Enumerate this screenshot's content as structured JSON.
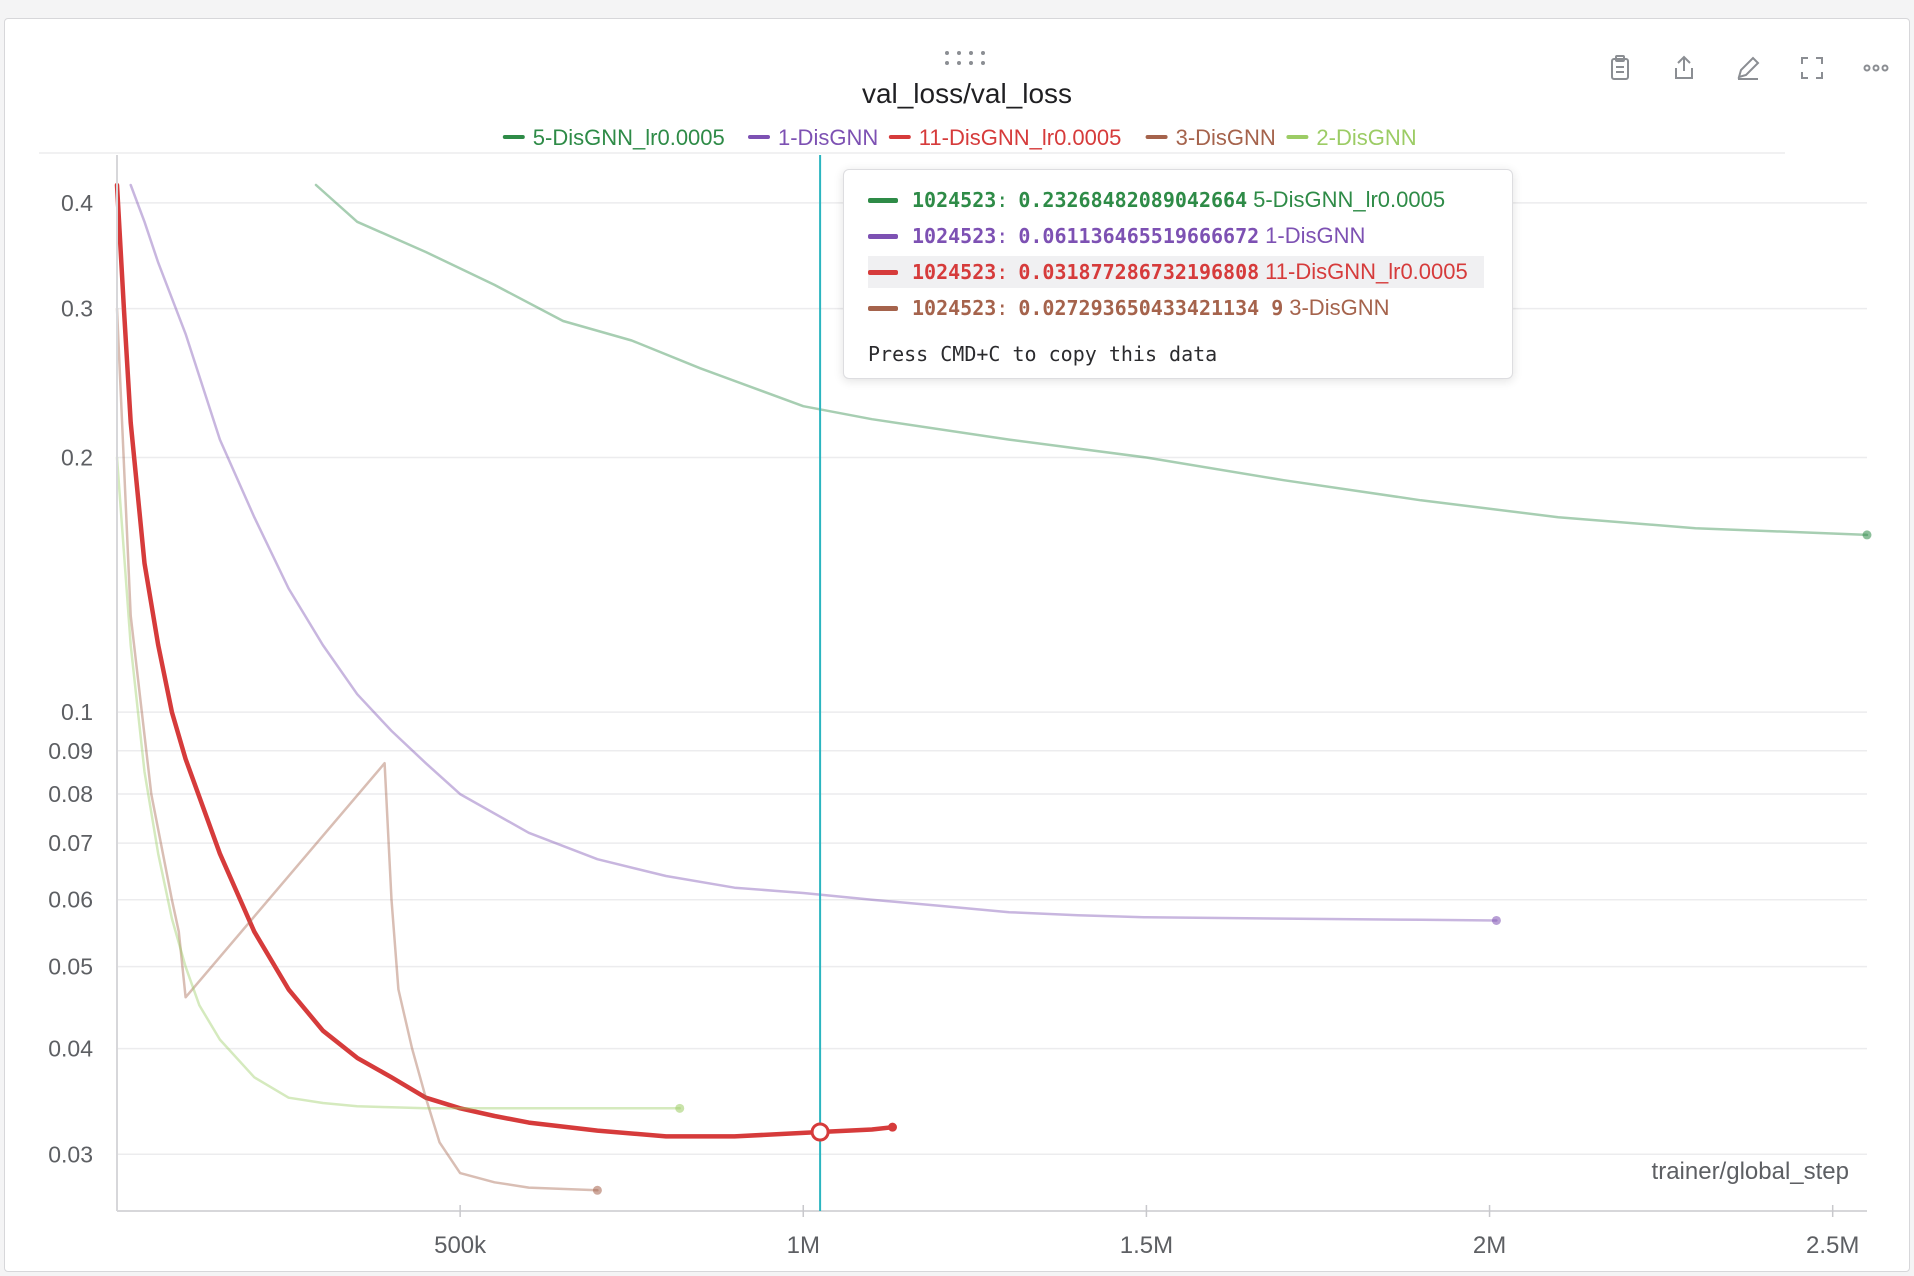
{
  "toolbar": {
    "icons": [
      "clipboard-icon",
      "share-icon",
      "edit-icon",
      "fullscreen-icon",
      "more-icon"
    ]
  },
  "chart_data": {
    "type": "line",
    "title": "val_loss/val_loss",
    "xlabel": "trainer/global_step",
    "ylabel": "",
    "y_scale": "log",
    "xlim": [
      0,
      2550000
    ],
    "ylim": [
      0.027,
      0.42
    ],
    "grid": true,
    "legend_position": "top",
    "x_ticks": [
      {
        "value": 500000,
        "label": "500k"
      },
      {
        "value": 1000000,
        "label": "1M"
      },
      {
        "value": 1500000,
        "label": "1.5M"
      },
      {
        "value": 2000000,
        "label": "2M"
      },
      {
        "value": 2500000,
        "label": "2.5M"
      }
    ],
    "y_ticks": [
      {
        "value": 0.03,
        "label": "0.03"
      },
      {
        "value": 0.04,
        "label": "0.04"
      },
      {
        "value": 0.05,
        "label": "0.05"
      },
      {
        "value": 0.06,
        "label": "0.06"
      },
      {
        "value": 0.07,
        "label": "0.07"
      },
      {
        "value": 0.08,
        "label": "0.08"
      },
      {
        "value": 0.09,
        "label": "0.09"
      },
      {
        "value": 0.1,
        "label": "0.1"
      },
      {
        "value": 0.2,
        "label": "0.2"
      },
      {
        "value": 0.3,
        "label": "0.3"
      },
      {
        "value": 0.4,
        "label": "0.4"
      }
    ],
    "series": [
      {
        "name": "5-DisGNN_lr0.0005",
        "color": "#2e8b47",
        "faded": true,
        "x": [
          290000,
          350000,
          450000,
          550000,
          650000,
          750000,
          850000,
          1000000,
          1100000,
          1300000,
          1500000,
          1700000,
          1900000,
          2100000,
          2300000,
          2550000
        ],
        "y": [
          0.42,
          0.38,
          0.35,
          0.32,
          0.29,
          0.275,
          0.255,
          0.23,
          0.222,
          0.21,
          0.2,
          0.188,
          0.178,
          0.17,
          0.165,
          0.162
        ]
      },
      {
        "name": "1-DisGNN",
        "color": "#7d51b3",
        "faded": true,
        "x": [
          20000,
          40000,
          60000,
          100000,
          150000,
          200000,
          250000,
          300000,
          350000,
          400000,
          450000,
          500000,
          600000,
          700000,
          800000,
          900000,
          1000000,
          1100000,
          1200000,
          1300000,
          1400000,
          1500000,
          1700000,
          1900000,
          2010000
        ],
        "y": [
          0.42,
          0.38,
          0.34,
          0.28,
          0.21,
          0.17,
          0.14,
          0.12,
          0.105,
          0.095,
          0.087,
          0.08,
          0.072,
          0.067,
          0.064,
          0.062,
          0.0611,
          0.06,
          0.059,
          0.058,
          0.0575,
          0.0572,
          0.057,
          0.0568,
          0.0567
        ]
      },
      {
        "name": "11-DisGNN_lr0.0005",
        "color": "#d63b3b",
        "faded": false,
        "x": [
          0,
          10000,
          20000,
          40000,
          60000,
          80000,
          100000,
          150000,
          200000,
          250000,
          300000,
          350000,
          400000,
          450000,
          500000,
          550000,
          600000,
          700000,
          800000,
          900000,
          1024523,
          1100000,
          1130000
        ],
        "y": [
          0.42,
          0.3,
          0.22,
          0.15,
          0.12,
          0.1,
          0.088,
          0.068,
          0.055,
          0.047,
          0.042,
          0.039,
          0.037,
          0.035,
          0.034,
          0.0333,
          0.0327,
          0.032,
          0.0315,
          0.0315,
          0.03188,
          0.0321,
          0.0323
        ]
      },
      {
        "name": "3-DisGNN",
        "color": "#a5634c",
        "faded": true,
        "x": [
          0,
          20000,
          50000,
          80000,
          90000,
          100000,
          390000,
          400000,
          410000,
          430000,
          450000,
          470000,
          500000,
          550000,
          600000,
          700000
        ],
        "y": [
          0.3,
          0.13,
          0.08,
          0.06,
          0.055,
          0.046,
          0.087,
          0.06,
          0.047,
          0.04,
          0.035,
          0.031,
          0.0285,
          0.0278,
          0.0274,
          0.0272
        ]
      },
      {
        "name": "2-DisGNN",
        "color": "#9ccc65",
        "faded": true,
        "x": [
          0,
          20000,
          40000,
          60000,
          80000,
          100000,
          120000,
          150000,
          200000,
          250000,
          300000,
          350000,
          400000,
          450000,
          500000,
          600000,
          700000,
          820000
        ],
        "y": [
          0.2,
          0.12,
          0.085,
          0.068,
          0.057,
          0.05,
          0.045,
          0.041,
          0.037,
          0.035,
          0.0345,
          0.0342,
          0.0341,
          0.034,
          0.034,
          0.034,
          0.034,
          0.034
        ]
      }
    ],
    "cursor": {
      "x": 1024523
    },
    "tooltip": {
      "rows": [
        {
          "step": "1024523",
          "value": "0.23268482089042664",
          "name": "5-DisGNN_lr0.0005",
          "color": "#2e8b47",
          "highlighted": false
        },
        {
          "step": "1024523",
          "value": "0.061136465519666672",
          "name": "1-DisGNN",
          "color": "#7d51b3",
          "highlighted": false
        },
        {
          "step": "1024523",
          "value": "0.031877286732196808",
          "name": "11-DisGNN_lr0.0005",
          "color": "#d63b3b",
          "highlighted": true
        },
        {
          "step": "1024523",
          "value": "0.027293650433421134 9",
          "name": "3-DisGNN",
          "color": "#a5634c",
          "highlighted": false
        }
      ],
      "note": "Press CMD+C to copy this data"
    }
  }
}
